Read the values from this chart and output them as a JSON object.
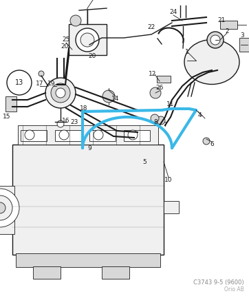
{
  "footer_code": "C3743 9-5 (9600)",
  "footer_brand": "Orio AB",
  "bg_color": "#ffffff",
  "line_color": "#1a1a1a",
  "highlight_color": "#3ab8e8",
  "gray_fill": "#d8d8d8",
  "light_fill": "#f0f0f0"
}
